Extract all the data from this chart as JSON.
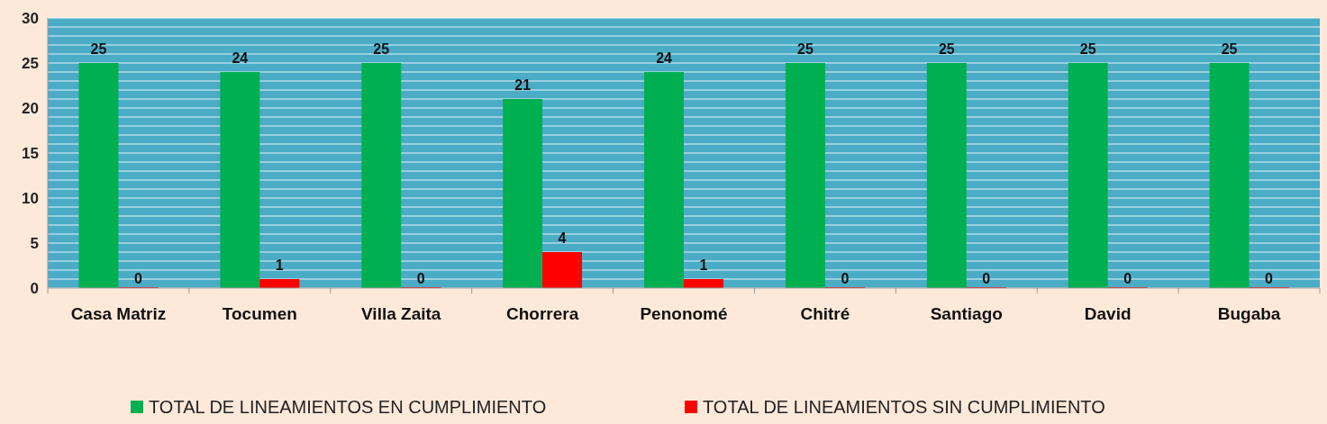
{
  "chart_data": {
    "type": "bar",
    "categories": [
      "Casa Matriz",
      "Tocumen",
      "Villa Zaita",
      "Chorrera",
      "Penonomé",
      "Chitré",
      "Santiago",
      "David",
      "Bugaba"
    ],
    "series": [
      {
        "name": "TOTAL DE LINEAMIENTOS EN CUMPLIMIENTO",
        "color": "#00b050",
        "values": [
          25,
          24,
          25,
          21,
          24,
          25,
          25,
          25,
          25
        ]
      },
      {
        "name": "TOTAL DE LINEAMIENTOS SIN CUMPLIMIENTO",
        "color": "#ff0000",
        "values": [
          0,
          1,
          0,
          4,
          1,
          0,
          0,
          0,
          0
        ]
      }
    ],
    "ylim": [
      0,
      30
    ],
    "yticks": [
      0,
      {
        "value": 1,
        "label": null
      },
      {
        "value": 2,
        "label": null
      },
      {
        "value": 3,
        "label": null
      },
      {
        "value": 4,
        "label": null
      },
      5,
      {
        "value": 6,
        "label": null
      },
      {
        "value": 7,
        "label": null
      },
      {
        "value": 8,
        "label": null
      },
      {
        "value": 9,
        "label": null
      },
      10,
      {
        "value": 11,
        "label": null
      },
      {
        "value": 12,
        "label": null
      },
      {
        "value": 13,
        "label": null
      },
      {
        "value": 14,
        "label": null
      },
      15,
      {
        "value": 16,
        "label": null
      },
      {
        "value": 17,
        "label": null
      },
      {
        "value": 18,
        "label": null
      },
      {
        "value": 19,
        "label": null
      },
      20,
      {
        "value": 21,
        "label": null
      },
      {
        "value": 22,
        "label": null
      },
      {
        "value": 23,
        "label": null
      },
      {
        "value": 24,
        "label": null
      },
      25,
      {
        "value": 26,
        "label": null
      },
      {
        "value": 27,
        "label": null
      },
      {
        "value": 28,
        "label": null
      },
      {
        "value": 29,
        "label": null
      },
      30
    ],
    "grid": "y",
    "data_labels": true,
    "legend": "bottom"
  }
}
